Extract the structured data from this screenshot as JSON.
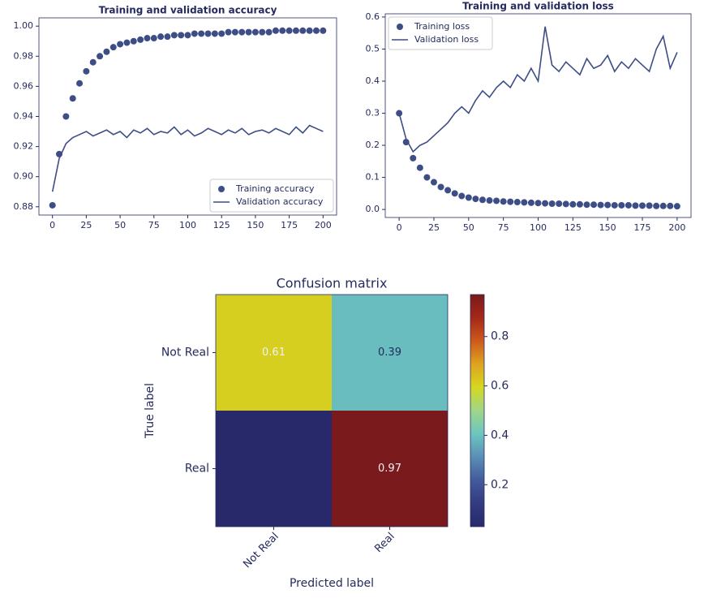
{
  "chart_data": [
    {
      "type": "line",
      "title": "Training and validation accuracy",
      "legend": "lower right",
      "grid": false,
      "x": [
        0,
        5,
        10,
        15,
        20,
        25,
        30,
        35,
        40,
        45,
        50,
        55,
        60,
        65,
        70,
        75,
        80,
        85,
        90,
        95,
        100,
        105,
        110,
        115,
        120,
        125,
        130,
        135,
        140,
        145,
        150,
        155,
        160,
        165,
        170,
        175,
        180,
        185,
        190,
        195,
        200
      ],
      "xlim": [
        -10,
        210
      ],
      "xticks": [
        0,
        25,
        50,
        75,
        100,
        125,
        150,
        175,
        200
      ],
      "ylim": [
        0.8745,
        1.0055
      ],
      "yticks": [
        0.88,
        {
          "value": 0.9,
          "label": "0.90"
        },
        0.92,
        0.94,
        0.96,
        0.98,
        {
          "value": 1,
          "label": "1.00"
        }
      ],
      "series": [
        {
          "name": "Training accuracy",
          "mode": "markers",
          "color": "#3d4d86",
          "values": [
            0.881,
            0.915,
            0.94,
            0.952,
            0.962,
            0.97,
            0.976,
            0.98,
            0.983,
            0.986,
            0.988,
            0.989,
            0.99,
            0.991,
            0.992,
            0.992,
            0.993,
            0.993,
            0.994,
            0.994,
            0.994,
            0.995,
            0.995,
            0.995,
            0.995,
            0.995,
            0.996,
            0.996,
            0.996,
            0.996,
            0.996,
            0.996,
            0.996,
            0.997,
            0.997,
            0.997,
            0.997,
            0.997,
            0.997,
            0.997,
            0.997
          ]
        },
        {
          "name": "Validation accuracy",
          "mode": "lines",
          "color": "#3d4d86",
          "values": [
            0.89,
            0.912,
            0.922,
            0.926,
            0.928,
            0.93,
            0.927,
            0.929,
            0.931,
            0.928,
            0.93,
            0.926,
            0.931,
            0.929,
            0.932,
            0.928,
            0.93,
            0.929,
            0.933,
            0.928,
            0.931,
            0.927,
            0.929,
            0.932,
            0.93,
            0.928,
            0.931,
            0.929,
            0.932,
            0.928,
            0.93,
            0.931,
            0.929,
            0.932,
            0.93,
            0.928,
            0.933,
            0.929,
            0.934,
            0.932,
            0.93
          ]
        }
      ]
    },
    {
      "type": "line",
      "title": "Training and validation loss",
      "legend": "upper left",
      "grid": false,
      "x": [
        0,
        5,
        10,
        15,
        20,
        25,
        30,
        35,
        40,
        45,
        50,
        55,
        60,
        65,
        70,
        75,
        80,
        85,
        90,
        95,
        100,
        105,
        110,
        115,
        120,
        125,
        130,
        135,
        140,
        145,
        150,
        155,
        160,
        165,
        170,
        175,
        180,
        185,
        190,
        195,
        200
      ],
      "xlim": [
        -10,
        210
      ],
      "xticks": [
        0,
        25,
        50,
        75,
        100,
        125,
        150,
        175,
        200
      ],
      "ylim": [
        -0.025,
        0.61
      ],
      "yticks": [
        {
          "value": 0,
          "label": "0.0"
        },
        0.1,
        0.2,
        0.3,
        0.4,
        0.5,
        0.6
      ],
      "series": [
        {
          "name": "Training loss",
          "mode": "markers",
          "color": "#3d4d86",
          "values": [
            0.3,
            0.21,
            0.16,
            0.13,
            0.1,
            0.085,
            0.07,
            0.06,
            0.05,
            0.042,
            0.037,
            0.033,
            0.03,
            0.028,
            0.027,
            0.025,
            0.024,
            0.023,
            0.022,
            0.021,
            0.02,
            0.019,
            0.018,
            0.018,
            0.017,
            0.016,
            0.016,
            0.015,
            0.015,
            0.014,
            0.014,
            0.013,
            0.013,
            0.013,
            0.012,
            0.012,
            0.012,
            0.011,
            0.011,
            0.011,
            0.01
          ]
        },
        {
          "name": "Validation loss",
          "mode": "lines",
          "color": "#3d4d86",
          "values": [
            0.3,
            0.22,
            0.18,
            0.2,
            0.21,
            0.23,
            0.25,
            0.27,
            0.3,
            0.32,
            0.3,
            0.34,
            0.37,
            0.35,
            0.38,
            0.4,
            0.38,
            0.42,
            0.4,
            0.44,
            0.4,
            0.57,
            0.45,
            0.43,
            0.46,
            0.44,
            0.42,
            0.47,
            0.44,
            0.45,
            0.48,
            0.43,
            0.46,
            0.44,
            0.47,
            0.45,
            0.43,
            0.5,
            0.54,
            0.44,
            0.49
          ]
        }
      ]
    },
    {
      "type": "heatmap",
      "title": "Confusion matrix",
      "x_label": "Predicted label",
      "y_label": "True label",
      "x_categories": [
        "Not Real",
        "Real"
      ],
      "y_categories": [
        "Not Real",
        "Real"
      ],
      "values": [
        [
          0.61,
          0.39
        ],
        [
          0.03,
          0.97
        ]
      ],
      "clim": [
        0.03,
        0.97
      ],
      "cticks": [
        0.2,
        0.4,
        0.6,
        0.8
      ],
      "colormap": [
        "#27296b",
        "#333b80",
        "#435a9c",
        "#5a8fb4",
        "#6cc6c0",
        "#9fd68a",
        "#d5d820",
        "#dea420",
        "#cd5a1c",
        "#a52818",
        "#7a1a1c"
      ]
    }
  ]
}
